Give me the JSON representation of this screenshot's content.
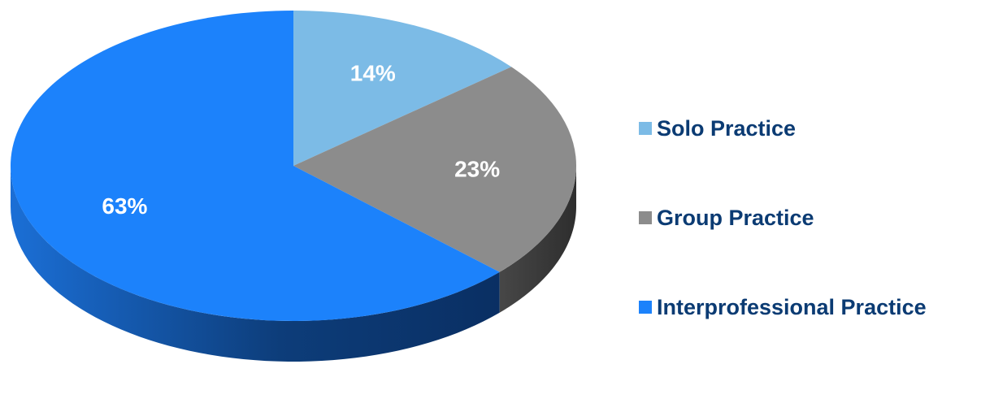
{
  "chart_data": {
    "type": "pie",
    "style": "3d",
    "categories": [
      "Solo Practice",
      "Group Practice",
      "Interprofessional Practice"
    ],
    "values": [
      14,
      23,
      63
    ],
    "labels": [
      "14%",
      "23%",
      "63%"
    ],
    "colors": [
      "#7cbbe6",
      "#8c8c8c",
      "#1c82fb"
    ],
    "side_colors": [
      "#3d6f99",
      "#3d3d3d",
      "#0d3a72"
    ],
    "legend_position": "right"
  }
}
